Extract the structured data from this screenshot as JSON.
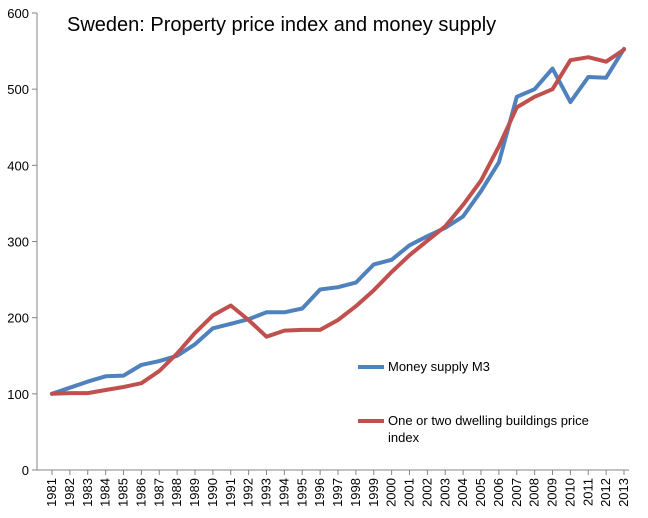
{
  "chart_data": {
    "type": "line",
    "title": "Sweden: Property price index and money supply",
    "xlabel": "",
    "ylabel": "",
    "ylim": [
      0,
      600
    ],
    "yticks": [
      0,
      100,
      200,
      300,
      400,
      500,
      600
    ],
    "grid": false,
    "legend_position": "right",
    "categories": [
      "1981",
      "1982",
      "1983",
      "1984",
      "1985",
      "1986",
      "1987",
      "1988",
      "1989",
      "1990",
      "1991",
      "1992",
      "1993",
      "1994",
      "1995",
      "1996",
      "1997",
      "1998",
      "1999",
      "2000",
      "2001",
      "2002",
      "2003",
      "2004",
      "2005",
      "2006",
      "2007",
      "2008",
      "2009",
      "2010",
      "2011",
      "2012",
      "2013"
    ],
    "series": [
      {
        "name": "Money supply M3",
        "color": "#4F81BD",
        "values": [
          100,
          108,
          116,
          123,
          124,
          138,
          143,
          150,
          165,
          186,
          192,
          198,
          207,
          207,
          212,
          237,
          240,
          246,
          270,
          276,
          295,
          307,
          318,
          333,
          366,
          404,
          490,
          500,
          527,
          483,
          516,
          515,
          553
        ]
      },
      {
        "name": "One or two dwelling buildings price index",
        "color": "#C0504D",
        "values": [
          100,
          101,
          101,
          105,
          109,
          114,
          130,
          153,
          180,
          203,
          216,
          197,
          175,
          183,
          184,
          184,
          197,
          215,
          236,
          260,
          282,
          301,
          320,
          348,
          380,
          425,
          476,
          490,
          500,
          538,
          542,
          536,
          552
        ]
      }
    ]
  }
}
